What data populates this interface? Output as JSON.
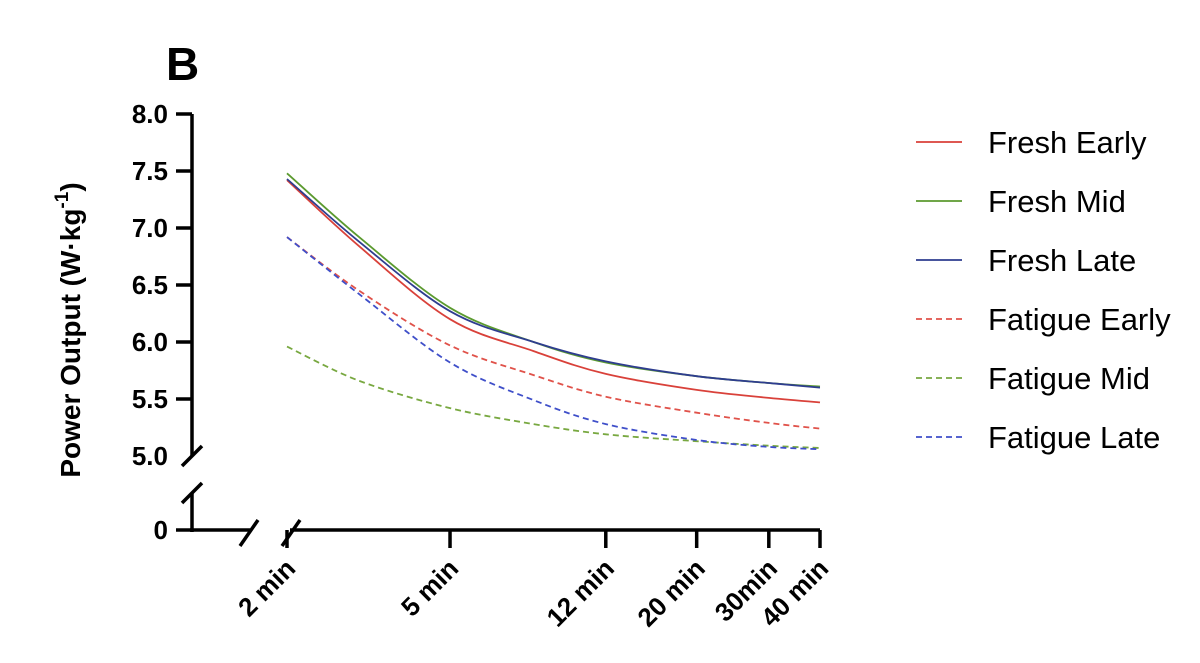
{
  "panel_label": "B",
  "chart_data": {
    "type": "line",
    "ylabel_main": "Power Output (W·kg",
    "ylabel_sup": "-1",
    "ylabel_close": ")",
    "yticks": [
      "8.0",
      "7.5",
      "7.0",
      "6.5",
      "6.0",
      "5.5",
      "5.0"
    ],
    "ytick_values": [
      8.0,
      7.5,
      7.0,
      6.5,
      6.0,
      5.5,
      5.0
    ],
    "ybreak_tick": "0",
    "ylim": [
      5.0,
      8.0
    ],
    "y_axis_break": true,
    "x_axis_break": true,
    "x_scale": "log",
    "xticks": [
      "2 min",
      "5 min",
      "12 min",
      "20 min",
      "30min",
      "40 min"
    ],
    "xtick_minutes": [
      2,
      5,
      12,
      20,
      30,
      40
    ],
    "legend_position": "right",
    "series": [
      {
        "name": "Fresh Early",
        "color": "#d9413a",
        "dash": "solid",
        "x": [
          2,
          3,
          5,
          8,
          12,
          20,
          30,
          40
        ],
        "y": [
          7.42,
          6.84,
          6.2,
          5.92,
          5.72,
          5.58,
          5.51,
          5.47
        ]
      },
      {
        "name": "Fresh Mid",
        "color": "#5b9a2f",
        "dash": "solid",
        "x": [
          2,
          3,
          5,
          8,
          12,
          20,
          30,
          40
        ],
        "y": [
          7.48,
          6.92,
          6.3,
          6.0,
          5.82,
          5.7,
          5.64,
          5.61
        ]
      },
      {
        "name": "Fresh Late",
        "color": "#2e3d8f",
        "dash": "solid",
        "x": [
          2,
          3,
          5,
          8,
          12,
          20,
          30,
          40
        ],
        "y": [
          7.43,
          6.88,
          6.27,
          6.0,
          5.83,
          5.7,
          5.64,
          5.6
        ]
      },
      {
        "name": "Fatigue Early",
        "color": "#e0524a",
        "dash": "dashed",
        "x": [
          2,
          3,
          5,
          8,
          12,
          20,
          30,
          40
        ],
        "y": [
          6.92,
          6.45,
          5.97,
          5.71,
          5.52,
          5.38,
          5.29,
          5.24
        ]
      },
      {
        "name": "Fatigue Mid",
        "color": "#78a840",
        "dash": "dashed",
        "x": [
          2,
          3,
          5,
          8,
          12,
          20,
          30,
          40
        ],
        "y": [
          5.96,
          5.66,
          5.42,
          5.28,
          5.19,
          5.13,
          5.09,
          5.07
        ]
      },
      {
        "name": "Fatigue Late",
        "color": "#3f4fc9",
        "dash": "dashed",
        "x": [
          2,
          3,
          5,
          8,
          12,
          20,
          30,
          40
        ],
        "y": [
          6.92,
          6.42,
          5.82,
          5.49,
          5.28,
          5.14,
          5.08,
          5.06
        ]
      }
    ]
  }
}
